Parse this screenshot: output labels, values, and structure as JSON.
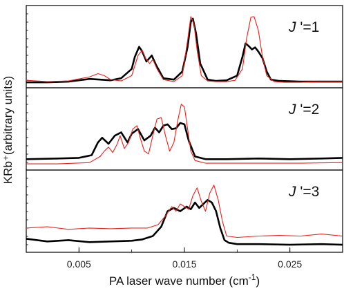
{
  "chart_data": {
    "type": "line",
    "xlabel": "PA laser wave number (cm⁻¹)",
    "ylabel": "KRb⁺(arbitrary units)",
    "xlim": [
      0.0,
      0.03
    ],
    "xticks": [
      0.005,
      0.015,
      0.025
    ],
    "xtick_labels": [
      "0.005",
      "0.015",
      "0.025"
    ],
    "grid": false,
    "colors": {
      "black": "#000000",
      "red": "#e8201a"
    },
    "panels": [
      {
        "label_prefix": "J",
        "label_sup": "'",
        "label_suffix": "=1",
        "ylim": [
          0,
          1
        ],
        "series": [
          {
            "color": "#000000",
            "x": [
              0.0,
              0.002,
              0.004,
              0.006,
              0.007,
              0.008,
              0.009,
              0.01,
              0.0103,
              0.0107,
              0.011,
              0.0114,
              0.0119,
              0.0123,
              0.013,
              0.014,
              0.0148,
              0.0153,
              0.0156,
              0.0158,
              0.0161,
              0.0165,
              0.0172,
              0.018,
              0.019,
              0.02,
              0.0205,
              0.0208,
              0.0211,
              0.0214,
              0.0217,
              0.022,
              0.0224,
              0.0228,
              0.0232,
              0.024,
              0.026,
              0.028,
              0.03
            ],
            "y": [
              0.02,
              0.02,
              0.03,
              0.07,
              0.06,
              0.05,
              0.08,
              0.22,
              0.4,
              0.55,
              0.48,
              0.33,
              0.42,
              0.28,
              0.08,
              0.06,
              0.18,
              0.55,
              0.92,
              0.97,
              0.75,
              0.3,
              0.06,
              0.04,
              0.05,
              0.12,
              0.4,
              0.6,
              0.56,
              0.51,
              0.54,
              0.48,
              0.38,
              0.18,
              0.06,
              0.04,
              0.03,
              0.03,
              0.03
            ]
          },
          {
            "color": "#e8201a",
            "x": [
              0.0,
              0.002,
              0.004,
              0.006,
              0.0068,
              0.0074,
              0.008,
              0.009,
              0.01,
              0.0106,
              0.011,
              0.0113,
              0.0117,
              0.012,
              0.0124,
              0.013,
              0.014,
              0.0148,
              0.0153,
              0.0156,
              0.0159,
              0.0162,
              0.0166,
              0.0172,
              0.018,
              0.019,
              0.0198,
              0.0205,
              0.0209,
              0.0213,
              0.0216,
              0.022,
              0.0224,
              0.0228,
              0.0235,
              0.0245,
              0.026,
              0.028,
              0.03
            ],
            "y": [
              0.05,
              0.03,
              0.04,
              0.1,
              0.15,
              0.12,
              0.06,
              0.04,
              0.12,
              0.42,
              0.5,
              0.38,
              0.3,
              0.36,
              0.22,
              0.06,
              0.03,
              0.12,
              0.65,
              1.0,
              0.9,
              0.5,
              0.12,
              0.04,
              0.03,
              0.03,
              0.05,
              0.22,
              0.68,
              0.99,
              1.0,
              0.8,
              0.4,
              0.12,
              0.03,
              0.02,
              0.02,
              0.03,
              0.03
            ]
          }
        ]
      },
      {
        "label_prefix": "J",
        "label_sup": "'",
        "label_suffix": "=2",
        "ylim": [
          0,
          1
        ],
        "series": [
          {
            "color": "#000000",
            "x": [
              0.0,
              0.003,
              0.005,
              0.0062,
              0.0068,
              0.0072,
              0.0078,
              0.0084,
              0.009,
              0.0096,
              0.01,
              0.0106,
              0.0112,
              0.0118,
              0.0122,
              0.0126,
              0.013,
              0.0134,
              0.0138,
              0.0142,
              0.0146,
              0.015,
              0.0154,
              0.016,
              0.017,
              0.019,
              0.022,
              0.025,
              0.028,
              0.03
            ],
            "y": [
              0.1,
              0.11,
              0.12,
              0.16,
              0.35,
              0.42,
              0.33,
              0.45,
              0.5,
              0.35,
              0.48,
              0.55,
              0.38,
              0.45,
              0.57,
              0.5,
              0.6,
              0.62,
              0.55,
              0.56,
              0.64,
              0.62,
              0.38,
              0.14,
              0.1,
              0.1,
              0.11,
              0.1,
              0.11,
              0.12
            ]
          },
          {
            "color": "#e8201a",
            "x": [
              0.0,
              0.003,
              0.006,
              0.007,
              0.0074,
              0.0078,
              0.0082,
              0.0086,
              0.0089,
              0.0093,
              0.0097,
              0.0101,
              0.0105,
              0.0108,
              0.0112,
              0.0116,
              0.012,
              0.0124,
              0.0128,
              0.0132,
              0.0136,
              0.014,
              0.0144,
              0.0147,
              0.015,
              0.0153,
              0.0156,
              0.016,
              0.017,
              0.019,
              0.022,
              0.026,
              0.03
            ],
            "y": [
              0.03,
              0.03,
              0.05,
              0.14,
              0.22,
              0.28,
              0.2,
              0.32,
              0.45,
              0.26,
              0.35,
              0.55,
              0.6,
              0.42,
              0.22,
              0.18,
              0.45,
              0.7,
              0.72,
              0.45,
              0.22,
              0.35,
              0.7,
              0.92,
              0.88,
              0.55,
              0.22,
              0.08,
              0.04,
              0.04,
              0.04,
              0.04,
              0.05
            ]
          }
        ]
      },
      {
        "label_prefix": "J",
        "label_sup": "'",
        "label_suffix": "=3",
        "ylim": [
          0,
          1
        ],
        "series": [
          {
            "color": "#000000",
            "x": [
              0.0,
              0.002,
              0.004,
              0.006,
              0.008,
              0.01,
              0.011,
              0.012,
              0.0128,
              0.0134,
              0.014,
              0.0146,
              0.0152,
              0.0156,
              0.016,
              0.0164,
              0.0168,
              0.0172,
              0.0176,
              0.018,
              0.0184,
              0.0188,
              0.0192,
              0.02,
              0.022,
              0.025,
              0.028,
              0.03
            ],
            "y": [
              0.14,
              0.1,
              0.12,
              0.09,
              0.1,
              0.11,
              0.13,
              0.18,
              0.32,
              0.55,
              0.6,
              0.55,
              0.62,
              0.58,
              0.68,
              0.6,
              0.66,
              0.72,
              0.68,
              0.55,
              0.3,
              0.12,
              0.08,
              0.06,
              0.06,
              0.05,
              0.06,
              0.05
            ]
          },
          {
            "color": "#e8201a",
            "x": [
              0.0,
              0.002,
              0.004,
              0.006,
              0.008,
              0.01,
              0.0115,
              0.0125,
              0.0132,
              0.0138,
              0.0142,
              0.0146,
              0.015,
              0.0154,
              0.0158,
              0.0162,
              0.0166,
              0.017,
              0.0174,
              0.0178,
              0.0182,
              0.0186,
              0.019,
              0.02,
              0.022,
              0.024,
              0.026,
              0.028,
              0.03
            ],
            "y": [
              0.3,
              0.32,
              0.28,
              0.3,
              0.29,
              0.3,
              0.3,
              0.35,
              0.48,
              0.62,
              0.55,
              0.66,
              0.62,
              0.58,
              0.78,
              0.9,
              0.7,
              0.55,
              0.82,
              0.94,
              0.72,
              0.4,
              0.18,
              0.16,
              0.18,
              0.19,
              0.18,
              0.21,
              0.18
            ]
          }
        ]
      }
    ]
  }
}
